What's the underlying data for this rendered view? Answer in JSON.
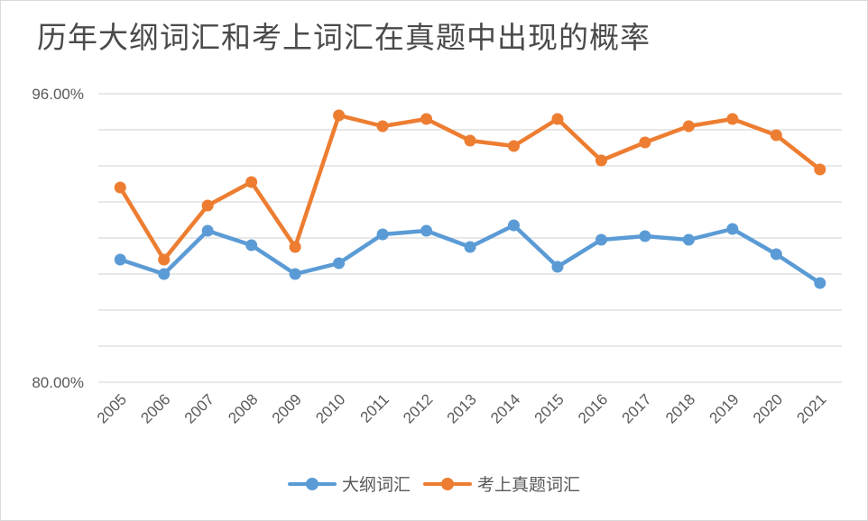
{
  "chart_data": {
    "type": "line",
    "title": "历年大纲词汇和考上词汇在真题中出现的概率",
    "xlabel": "",
    "ylabel": "",
    "categories": [
      "2005",
      "2006",
      "2007",
      "2008",
      "2009",
      "2010",
      "2011",
      "2012",
      "2013",
      "2014",
      "2015",
      "2016",
      "2017",
      "2018",
      "2019",
      "2020",
      "2021"
    ],
    "ylim": [
      80,
      96
    ],
    "y_tick_labels": [
      "96.00%",
      "80.00%"
    ],
    "y_gridlines": [
      80,
      82,
      84,
      86,
      88,
      90,
      92,
      94,
      96
    ],
    "grid": true,
    "legend_position": "bottom",
    "series": [
      {
        "name": "大纲词汇",
        "color": "#5B9BD5",
        "values": [
          86.8,
          86.0,
          88.4,
          87.6,
          86.0,
          86.6,
          88.2,
          88.4,
          87.5,
          88.7,
          86.4,
          87.9,
          88.1,
          87.9,
          88.5,
          87.1,
          85.5
        ]
      },
      {
        "name": "考上真题词汇",
        "color": "#ED7D31",
        "values": [
          90.8,
          86.8,
          89.8,
          91.1,
          87.5,
          94.8,
          94.2,
          94.6,
          93.4,
          93.1,
          94.6,
          92.3,
          93.3,
          94.2,
          94.6,
          93.7,
          91.8
        ]
      }
    ]
  }
}
